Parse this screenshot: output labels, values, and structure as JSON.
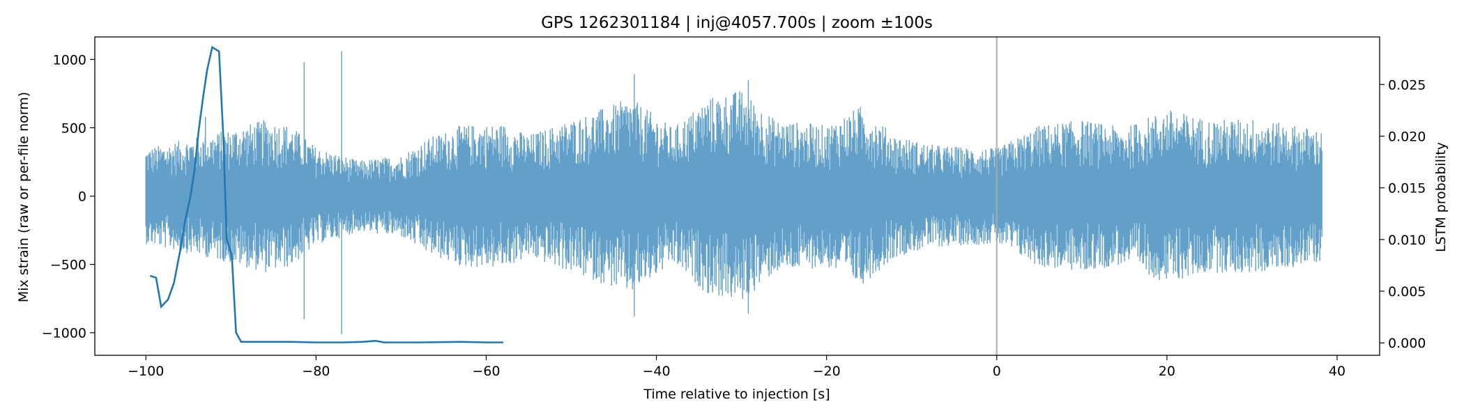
{
  "chart_data": {
    "type": "line",
    "title": "GPS 1262301184 | inj@4057.700s | zoom ±100s",
    "xlabel": "Time relative to injection [s]",
    "ylabel_left": "Mix strain (raw or per-file norm)",
    "ylabel_right": "LSTM probability",
    "xlim": [
      -106,
      45
    ],
    "ylim_left": [
      -1165,
      1165
    ],
    "ylim_right": [
      -0.0012,
      0.0296
    ],
    "xticks": [
      -100,
      -80,
      -60,
      -40,
      -20,
      0,
      20,
      40
    ],
    "xtick_labels": [
      "−100",
      "−80",
      "−60",
      "−40",
      "−20",
      "0",
      "20",
      "40"
    ],
    "yticks_left": [
      -1000,
      -500,
      0,
      500,
      1000
    ],
    "ytick_labels_left": [
      "−1000",
      "−500",
      "0",
      "500",
      "1000"
    ],
    "yticks_right": [
      0.0,
      0.005,
      0.01,
      0.015,
      0.02,
      0.025
    ],
    "ytick_labels_right": [
      "0.000",
      "0.005",
      "0.010",
      "0.015",
      "0.020",
      "0.025"
    ],
    "grid": false,
    "legend": "none",
    "injection_marker": {
      "x": 0,
      "color": "#aaaaaa"
    },
    "strain": {
      "axis": "left",
      "color": "#1f77b4",
      "opacity": 0.7,
      "x_range": [
        -100,
        38.3
      ],
      "spikes": [
        {
          "x": -81.4,
          "value": 980
        },
        {
          "x": -81.4,
          "value": -900
        },
        {
          "x": -77.0,
          "value": 1060
        },
        {
          "x": -77.0,
          "value": -1010
        },
        {
          "x": -93.0,
          "value": 580
        },
        {
          "x": -42.6,
          "value": 890
        },
        {
          "x": -42.6,
          "value": -880
        },
        {
          "x": -29.2,
          "value": 850
        },
        {
          "x": -29.2,
          "value": -860
        }
      ],
      "envelope": [
        {
          "x": -100,
          "amp": 350
        },
        {
          "x": -95,
          "amp": 420
        },
        {
          "x": -92,
          "amp": 460
        },
        {
          "x": -86,
          "amp": 560
        },
        {
          "x": -83,
          "amp": 520
        },
        {
          "x": -80,
          "amp": 360
        },
        {
          "x": -75,
          "amp": 260
        },
        {
          "x": -70,
          "amp": 300
        },
        {
          "x": -67,
          "amp": 420
        },
        {
          "x": -63,
          "amp": 520
        },
        {
          "x": -58,
          "amp": 530
        },
        {
          "x": -55,
          "amp": 450
        },
        {
          "x": -50,
          "amp": 560
        },
        {
          "x": -46,
          "amp": 650
        },
        {
          "x": -43,
          "amp": 720
        },
        {
          "x": -38,
          "amp": 500
        },
        {
          "x": -34,
          "amp": 720
        },
        {
          "x": -30,
          "amp": 780
        },
        {
          "x": -26,
          "amp": 560
        },
        {
          "x": -20,
          "amp": 520
        },
        {
          "x": -16,
          "amp": 660
        },
        {
          "x": -12,
          "amp": 450
        },
        {
          "x": -8,
          "amp": 380
        },
        {
          "x": -4,
          "amp": 360
        },
        {
          "x": 0,
          "amp": 350
        },
        {
          "x": 5,
          "amp": 520
        },
        {
          "x": 10,
          "amp": 560
        },
        {
          "x": 15,
          "amp": 500
        },
        {
          "x": 20,
          "amp": 640
        },
        {
          "x": 25,
          "amp": 560
        },
        {
          "x": 30,
          "amp": 570
        },
        {
          "x": 35,
          "amp": 520
        },
        {
          "x": 38.3,
          "amp": 480
        }
      ]
    },
    "lstm": {
      "axis": "right",
      "color": "#1f77b4",
      "points": [
        [
          -99.5,
          0.0065
        ],
        [
          -98.8,
          0.0063
        ],
        [
          -98.2,
          0.0035
        ],
        [
          -97.4,
          0.0042
        ],
        [
          -96.7,
          0.0058
        ],
        [
          -96.0,
          0.0088
        ],
        [
          -95.4,
          0.0118
        ],
        [
          -94.8,
          0.014
        ],
        [
          -94.3,
          0.0166
        ],
        [
          -93.8,
          0.0205
        ],
        [
          -93.3,
          0.0236
        ],
        [
          -92.8,
          0.0264
        ],
        [
          -92.2,
          0.0286
        ],
        [
          -91.4,
          0.0282
        ],
        [
          -90.9,
          0.02
        ],
        [
          -90.5,
          0.01
        ],
        [
          -89.9,
          0.0085
        ],
        [
          -89.4,
          0.001
        ],
        [
          -88.8,
          0.0001
        ],
        [
          -87.0,
          0.0001
        ],
        [
          -83.0,
          0.0001
        ],
        [
          -80.0,
          5e-05
        ],
        [
          -77.0,
          5e-05
        ],
        [
          -74.5,
          0.0001
        ],
        [
          -73.0,
          0.0002
        ],
        [
          -72.0,
          5e-05
        ],
        [
          -68.0,
          5e-05
        ],
        [
          -63.0,
          0.0001
        ],
        [
          -60.0,
          5e-05
        ],
        [
          -58.0,
          5e-05
        ]
      ]
    }
  }
}
